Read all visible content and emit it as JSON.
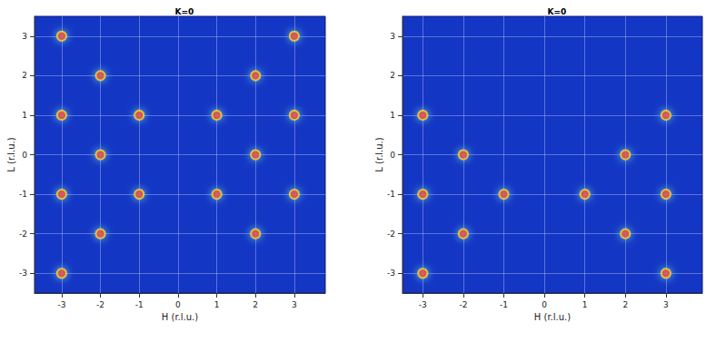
{
  "chart_data": [
    {
      "type": "scatter",
      "title": "K=0",
      "x_label": "H (r.l.u.)",
      "y_label": "L (r.l.u.)",
      "x": [
        -3,
        -2,
        -3,
        -1,
        -2,
        -3,
        -1,
        -2,
        -3,
        3,
        2,
        1,
        3,
        2,
        1,
        3,
        2
      ],
      "values": [
        3,
        2,
        1,
        1,
        0,
        -1,
        -1,
        -2,
        -3,
        3,
        2,
        1,
        1,
        0,
        -1,
        -1,
        -2
      ],
      "color": "#e8231c",
      "marker": "circle",
      "xlim": [
        -3.7,
        3.8
      ],
      "ylim": [
        -3.5,
        3.5
      ],
      "xticks": [
        -3,
        -2,
        -1,
        0,
        1,
        2,
        3
      ],
      "yticks": [
        -3,
        -2,
        -1,
        0,
        1,
        2,
        3
      ],
      "grid": true
    },
    {
      "type": "scatter",
      "title": "K=0",
      "x_label": "H (r.l.u.)",
      "y_label": "L (r.l.u.)",
      "x": [
        -3,
        -2,
        -3,
        -1,
        -2,
        -3,
        3,
        2,
        1,
        3,
        2,
        3
      ],
      "values": [
        1,
        0,
        -1,
        -1,
        -2,
        -3,
        1,
        0,
        -1,
        -1,
        -2,
        -3
      ],
      "color": "#e8231c",
      "marker": "circle",
      "xlim": [
        -3.5,
        3.9
      ],
      "ylim": [
        -3.5,
        3.5
      ],
      "xticks": [
        -3,
        -2,
        -1,
        0,
        1,
        2,
        3
      ],
      "yticks": [
        -3,
        -2,
        -1,
        0,
        1,
        2,
        3
      ],
      "grid": true
    }
  ]
}
